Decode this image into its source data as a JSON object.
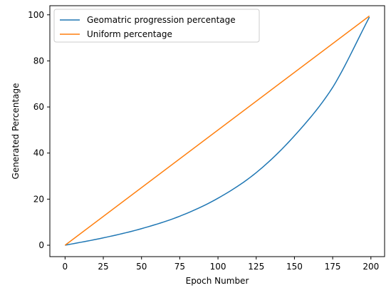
{
  "chart_data": {
    "type": "line",
    "xlabel": "Epoch Number",
    "ylabel": "Generated Percentage",
    "xlim": [
      -9.95,
      208.95
    ],
    "ylim": [
      -4.95,
      103.95
    ],
    "xticks": [
      0,
      25,
      50,
      75,
      100,
      125,
      150,
      175,
      200
    ],
    "yticks": [
      0,
      20,
      40,
      60,
      80,
      100
    ],
    "grid": false,
    "legend_position": "top-left",
    "series": [
      {
        "name": "Geomatric progression percentage",
        "color": "#1f77b4",
        "x": [
          0,
          25,
          50,
          75,
          100,
          125,
          150,
          175,
          199
        ],
        "y": [
          0,
          3.2,
          7.2,
          12.6,
          20.4,
          31.5,
          47.5,
          68.5,
          99
        ]
      },
      {
        "name": "Uniform percentage",
        "color": "#ff7f0e",
        "x": [
          0,
          199
        ],
        "y": [
          0,
          99.5
        ]
      }
    ]
  }
}
